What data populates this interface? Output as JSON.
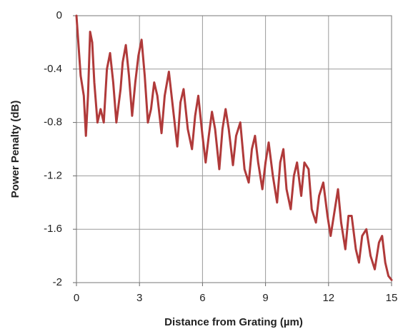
{
  "chart_data": {
    "type": "line",
    "x_label": "Distance from Grating (µm)",
    "y_label": "Power Penalty (dB)",
    "color": "#b03a3a",
    "grid": true,
    "xlim": [
      0,
      15
    ],
    "xticks": [
      0,
      3,
      6,
      9,
      12,
      15
    ],
    "ylim": [
      -2,
      0
    ],
    "yticks": [
      0,
      -0.4,
      -0.8,
      -1.2,
      -1.6,
      -2
    ],
    "x": [
      0,
      0.2,
      0.35,
      0.45,
      0.55,
      0.65,
      0.75,
      0.85,
      1.0,
      1.15,
      1.3,
      1.45,
      1.6,
      1.75,
      1.9,
      2.1,
      2.2,
      2.35,
      2.5,
      2.65,
      2.8,
      2.95,
      3.1,
      3.25,
      3.4,
      3.55,
      3.7,
      3.85,
      4.05,
      4.2,
      4.4,
      4.6,
      4.8,
      4.95,
      5.1,
      5.3,
      5.5,
      5.65,
      5.8,
      6.0,
      6.15,
      6.3,
      6.45,
      6.6,
      6.8,
      6.95,
      7.1,
      7.25,
      7.45,
      7.6,
      7.8,
      8.0,
      8.2,
      8.35,
      8.5,
      8.65,
      8.85,
      9.0,
      9.15,
      9.35,
      9.55,
      9.7,
      9.85,
      10.0,
      10.2,
      10.35,
      10.5,
      10.7,
      10.85,
      11.05,
      11.2,
      11.4,
      11.55,
      11.75,
      11.95,
      12.1,
      12.3,
      12.45,
      12.6,
      12.8,
      12.95,
      13.1,
      13.3,
      13.45,
      13.6,
      13.8,
      14.0,
      14.2,
      14.4,
      14.55,
      14.7,
      14.85,
      15.0
    ],
    "values": [
      0,
      -0.45,
      -0.6,
      -0.9,
      -0.6,
      -0.12,
      -0.2,
      -0.5,
      -0.8,
      -0.7,
      -0.8,
      -0.4,
      -0.28,
      -0.5,
      -0.8,
      -0.55,
      -0.35,
      -0.22,
      -0.45,
      -0.75,
      -0.5,
      -0.3,
      -0.18,
      -0.45,
      -0.8,
      -0.7,
      -0.5,
      -0.6,
      -0.88,
      -0.6,
      -0.42,
      -0.7,
      -0.98,
      -0.65,
      -0.55,
      -0.85,
      -1.0,
      -0.75,
      -0.6,
      -0.9,
      -1.1,
      -0.9,
      -0.72,
      -0.85,
      -1.15,
      -0.85,
      -0.7,
      -0.85,
      -1.12,
      -0.9,
      -0.8,
      -1.15,
      -1.25,
      -1.0,
      -0.9,
      -1.1,
      -1.3,
      -1.1,
      -0.95,
      -1.2,
      -1.4,
      -1.1,
      -1.0,
      -1.3,
      -1.45,
      -1.2,
      -1.1,
      -1.35,
      -1.1,
      -1.15,
      -1.45,
      -1.55,
      -1.35,
      -1.25,
      -1.5,
      -1.65,
      -1.45,
      -1.3,
      -1.55,
      -1.75,
      -1.5,
      -1.5,
      -1.75,
      -1.85,
      -1.65,
      -1.6,
      -1.8,
      -1.9,
      -1.7,
      -1.65,
      -1.85,
      -1.95,
      -1.98
    ]
  }
}
